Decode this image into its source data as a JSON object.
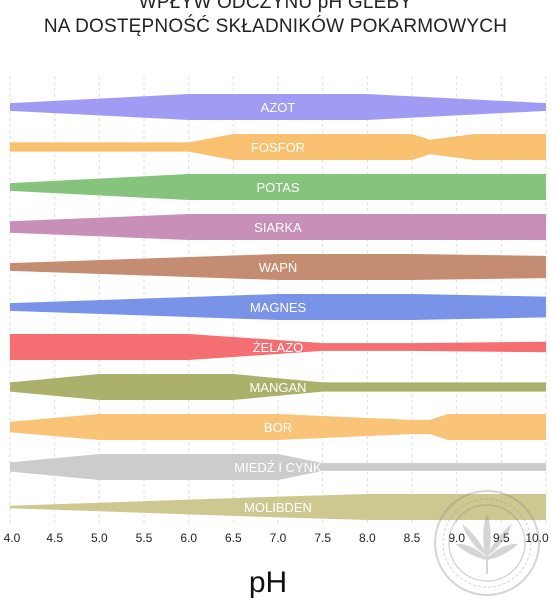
{
  "title_lines": [
    "WPŁYW ODCZYNU pH GLEBY",
    "NA DOSTĘPNOŚĆ SKŁADNIKÓW POKARMOWYCH"
  ],
  "chart_data": {
    "type": "area",
    "title": "WPŁYW ODCZYNU pH GLEBY NA DOSTĘPNOŚĆ SKŁADNIKÓW POKARMOWYCH",
    "xlabel": "pH",
    "ylabel": "",
    "xlim": [
      4.0,
      10.0
    ],
    "x_ticks": [
      "4.0",
      "4.5",
      "5.0",
      "5.5",
      "6.0",
      "6.5",
      "7.0",
      "7.5",
      "8.0",
      "8.5",
      "9.0",
      "9.5",
      "10.0"
    ],
    "grid": true,
    "value_description": "relative availability (band thickness), 0-1",
    "series": [
      {
        "name": "AZOT",
        "color": "#A09CF4",
        "points": [
          [
            4.0,
            0.3
          ],
          [
            6.0,
            1.0
          ],
          [
            8.0,
            1.0
          ],
          [
            10.0,
            0.3
          ]
        ]
      },
      {
        "name": "FOSFOR",
        "color": "#F9C070",
        "points": [
          [
            4.0,
            0.35
          ],
          [
            6.0,
            0.35
          ],
          [
            6.5,
            1.0
          ],
          [
            8.5,
            1.0
          ],
          [
            8.7,
            0.55
          ],
          [
            9.2,
            1.0
          ],
          [
            10.0,
            1.0
          ]
        ]
      },
      {
        "name": "POTAS",
        "color": "#86C47E",
        "points": [
          [
            4.0,
            0.3
          ],
          [
            6.0,
            1.0
          ],
          [
            10.0,
            1.0
          ]
        ]
      },
      {
        "name": "SIARKA",
        "color": "#C890B8",
        "points": [
          [
            4.0,
            0.45
          ],
          [
            6.0,
            1.0
          ],
          [
            10.0,
            1.0
          ]
        ]
      },
      {
        "name": "WAPŃ",
        "color": "#C48C70",
        "points": [
          [
            4.0,
            0.3
          ],
          [
            7.0,
            1.0
          ],
          [
            8.5,
            1.0
          ],
          [
            10.0,
            0.85
          ]
        ]
      },
      {
        "name": "MAGNES",
        "color": "#7893E8",
        "points": [
          [
            4.0,
            0.3
          ],
          [
            7.0,
            1.0
          ],
          [
            8.5,
            1.0
          ],
          [
            10.0,
            0.8
          ]
        ]
      },
      {
        "name": "ŻELAZO",
        "color": "#F46E72",
        "points": [
          [
            4.0,
            1.0
          ],
          [
            6.0,
            1.0
          ],
          [
            7.5,
            0.3
          ],
          [
            8.5,
            0.3
          ],
          [
            10.0,
            0.4
          ]
        ]
      },
      {
        "name": "MANGAN",
        "color": "#ABB06A",
        "points": [
          [
            4.0,
            0.35
          ],
          [
            5.0,
            1.0
          ],
          [
            6.5,
            1.0
          ],
          [
            7.5,
            0.35
          ],
          [
            10.0,
            0.35
          ]
        ]
      },
      {
        "name": "BOR",
        "color": "#F9C478",
        "points": [
          [
            4.0,
            0.4
          ],
          [
            5.0,
            1.0
          ],
          [
            7.0,
            1.0
          ],
          [
            8.5,
            0.55
          ],
          [
            8.7,
            0.55
          ],
          [
            8.9,
            1.0
          ],
          [
            10.0,
            1.0
          ]
        ]
      },
      {
        "name": "MIEDŹ I CYNK",
        "color": "#CCCCCC",
        "points": [
          [
            4.0,
            0.35
          ],
          [
            5.0,
            1.0
          ],
          [
            7.0,
            1.0
          ],
          [
            7.5,
            0.3
          ],
          [
            10.0,
            0.3
          ]
        ]
      },
      {
        "name": "MOLIBDEN",
        "color": "#CDC890",
        "points": [
          [
            4.0,
            0.1
          ],
          [
            7.0,
            0.8
          ],
          [
            8.0,
            1.0
          ],
          [
            10.0,
            1.0
          ]
        ]
      }
    ]
  }
}
